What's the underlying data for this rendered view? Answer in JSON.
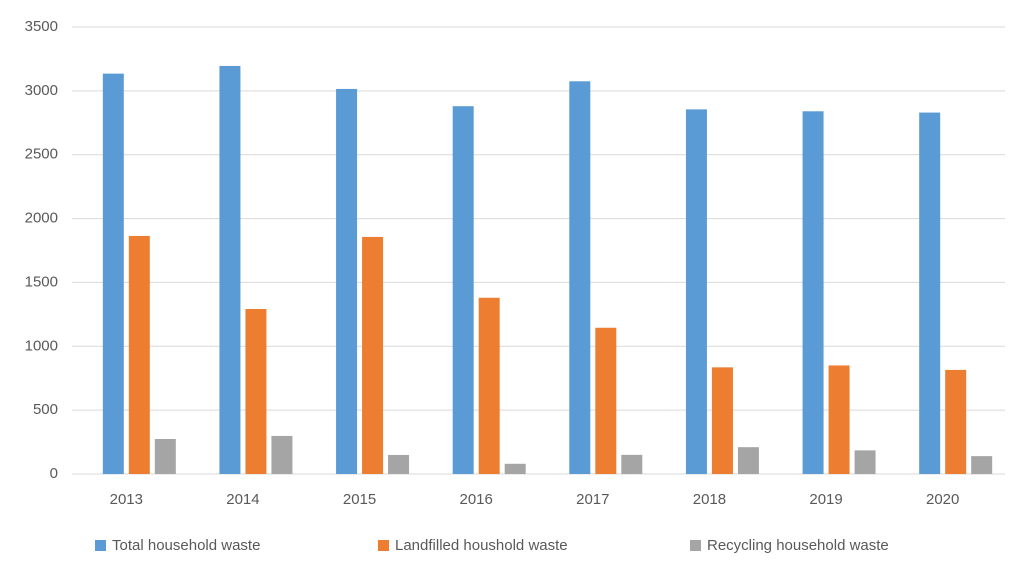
{
  "chart_data": {
    "type": "bar",
    "categories": [
      "2013",
      "2014",
      "2015",
      "2016",
      "2017",
      "2018",
      "2019",
      "2020"
    ],
    "series": [
      {
        "name": "Total household waste",
        "color": "#5b9bd5",
        "values": [
          3135,
          3195,
          3015,
          2880,
          3075,
          2855,
          2840,
          2830
        ]
      },
      {
        "name": "Landfilled houshold waste",
        "color": "#ed7d31",
        "values": [
          1864,
          1292,
          1856,
          1380,
          1145,
          835,
          850,
          815
        ]
      },
      {
        "name": "Recycling household waste",
        "color": "#a5a5a5",
        "values": [
          274,
          298,
          149,
          80,
          150,
          210,
          185,
          140
        ]
      }
    ],
    "ylim": [
      0,
      3500
    ],
    "yticks": [
      0,
      500,
      1000,
      1500,
      2000,
      2500,
      3000,
      3500
    ],
    "grid": true,
    "legend": "bottom"
  }
}
